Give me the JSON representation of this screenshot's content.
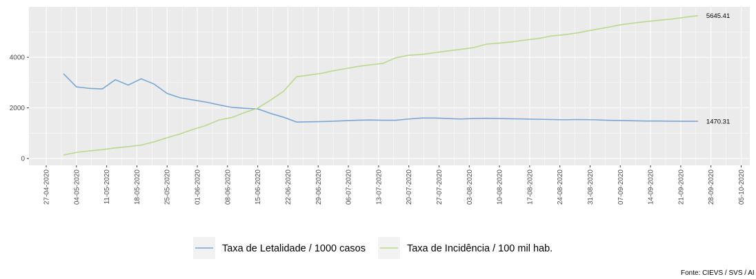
{
  "chart_data": {
    "type": "line",
    "x": [
      "01-05-2020",
      "04-05-2020",
      "07-05-2020",
      "10-05-2020",
      "13-05-2020",
      "16-05-2020",
      "19-05-2020",
      "22-05-2020",
      "25-05-2020",
      "28-05-2020",
      "31-05-2020",
      "03-06-2020",
      "06-06-2020",
      "09-06-2020",
      "12-06-2020",
      "15-06-2020",
      "18-06-2020",
      "21-06-2020",
      "24-06-2020",
      "27-06-2020",
      "30-06-2020",
      "02-07-2020",
      "05-07-2020",
      "08-07-2020",
      "11-07-2020",
      "14-07-2020",
      "17-07-2020",
      "20-07-2020",
      "23-07-2020",
      "26-07-2020",
      "29-07-2020",
      "01-08-2020",
      "04-08-2020",
      "07-08-2020",
      "10-08-2020",
      "13-08-2020",
      "16-08-2020",
      "19-08-2020",
      "22-08-2020",
      "25-08-2020",
      "28-08-2020",
      "01-09-2020",
      "04-09-2020",
      "07-09-2020",
      "10-09-2020",
      "13-09-2020",
      "16-09-2020",
      "19-09-2020",
      "22-09-2020",
      "25-09-2020"
    ],
    "series": [
      {
        "name": "Taxa de Letalidade / 1000 casos",
        "color": "#7aa6d6",
        "end_label": "1470.31",
        "values": [
          3347,
          2830,
          2770,
          2750,
          3110,
          2900,
          3150,
          2940,
          2570,
          2400,
          2313,
          2230,
          2120,
          2020,
          1985,
          1960,
          1780,
          1630,
          1440,
          1450,
          1460,
          1470,
          1490,
          1510,
          1520,
          1510,
          1510,
          1560,
          1600,
          1600,
          1580,
          1560,
          1580,
          1590,
          1580,
          1570,
          1560,
          1550,
          1540,
          1530,
          1540,
          1530,
          1510,
          1500,
          1490,
          1480,
          1480,
          1475,
          1470,
          1470.31
        ]
      },
      {
        "name": "Taxa de Incidência / 100 mil hab.",
        "color": "#b9d98a",
        "end_label": "5645.41",
        "values": [
          136,
          240,
          300,
          350,
          420,
          470,
          530,
          660,
          820,
          970,
          1150,
          1306,
          1520,
          1620,
          1820,
          1990,
          2310,
          2660,
          3230,
          3300,
          3370,
          3450,
          3540,
          3630,
          3700,
          3760,
          3980,
          4080,
          4110,
          4180,
          4250,
          4310,
          4380,
          4520,
          4560,
          4610,
          4680,
          4740,
          4840,
          4890,
          4960,
          5090,
          5180,
          5280,
          5350,
          5410,
          5460,
          5510,
          5580,
          5645.41
        ]
      }
    ],
    "xlim": [
      "23-04-2020",
      "07-10-2020"
    ],
    "xticks": [
      "27-04-2020",
      "04-05-2020",
      "11-05-2020",
      "18-05-2020",
      "25-05-2020",
      "01-06-2020",
      "08-06-2020",
      "15-06-2020",
      "22-06-2020",
      "29-06-2020",
      "06-07-2020",
      "13-07-2020",
      "20-07-2020",
      "27-07-2020",
      "03-08-2020",
      "10-08-2020",
      "17-08-2020",
      "24-08-2020",
      "31-08-2020",
      "07-09-2020",
      "14-09-2020",
      "21-09-2020",
      "28-09-2020",
      "05-10-2020"
    ],
    "ylim": [
      -270,
      5990
    ],
    "yticks": [
      0,
      2000,
      4000
    ],
    "grid": true,
    "legend": "bottom",
    "caption": "Fonte: CIEVS / SVS / AI"
  }
}
